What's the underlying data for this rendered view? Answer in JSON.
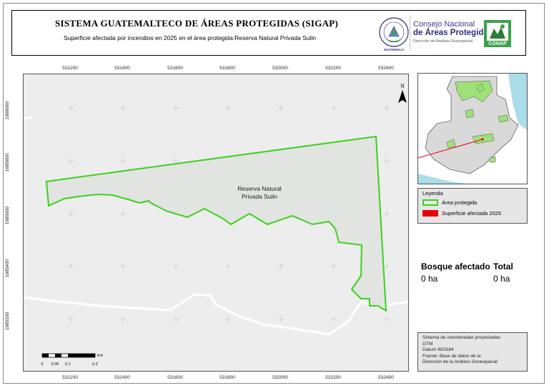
{
  "header": {
    "title": "SISTEMA GUATEMALTECO DE ÁREAS PROTEGIDAS  (SIGAP)",
    "subtitle": "Superficie afectada por incendios en 2025 en el área protegida:Reserva Natural Privada Sulin",
    "logo_line1": "Consejo Nacional",
    "logo_line2": "de Áreas Protegidas",
    "logo_line3": "Dirección de Análisis Geoespacial",
    "conap_label": "CONAP",
    "seal_top_text": "GOBIERNO DE LA REPÚBLICA DE",
    "seal_bottom_text": "GUATEMALA"
  },
  "map": {
    "area_label_line1": "Reserva Natural",
    "area_label_line2": "Privada Sulin",
    "north_label": "N",
    "x_ticks": [
      "531200",
      "531400",
      "531600",
      "531800",
      "532000",
      "532200",
      "532400"
    ],
    "y_ticks": [
      "1686000",
      "1685800",
      "1685600",
      "1685400",
      "1685200"
    ],
    "colors": {
      "background": "#ededed",
      "protected_area_outline": "#3dd11c",
      "protected_area_fill": "#e1e4e1",
      "roads": "#ffffff",
      "grid_cross": "#c8c8c8"
    }
  },
  "legend": {
    "title": "Leyenda",
    "items": [
      {
        "label": "Área protegida",
        "color": "#3dd11c"
      },
      {
        "label": "Superficie afectada 2025",
        "color": "#e60000"
      }
    ]
  },
  "stats": {
    "forest_header": "Bosque afectado",
    "total_header": "Total",
    "forest_value": "0 ha",
    "total_value": "0 ha"
  },
  "notes": {
    "lines": [
      "Sistema de coordenadas proyectadas",
      "GTM",
      "Datum WGS84",
      "Fuente: Base de datos de la",
      "Dirección de la Análisis Geoespacial"
    ]
  },
  "scale_bar": {
    "unit": "Km",
    "labels": [
      "0",
      "0.05",
      "0.1",
      "0.2"
    ]
  },
  "inset": {
    "colors": {
      "water": "#a9dde8",
      "country": "#d9d9d9",
      "protected_areas": "#9ee07a",
      "locator_line": "#e60000"
    }
  }
}
